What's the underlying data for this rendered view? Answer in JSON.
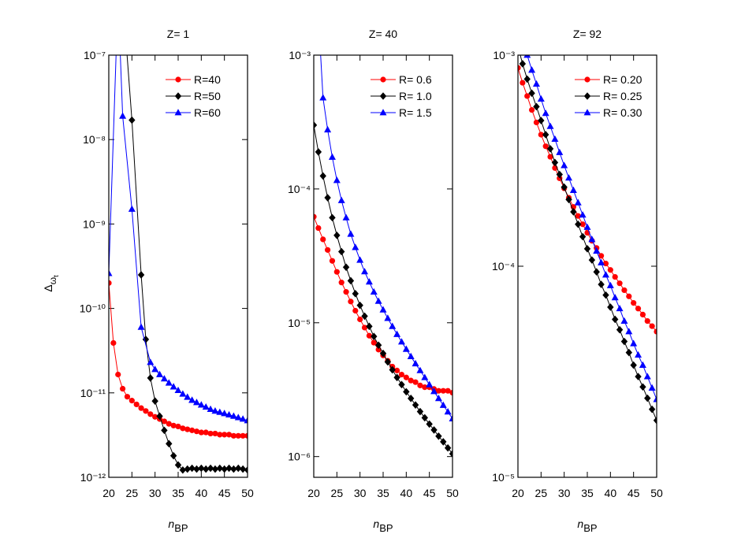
{
  "chart_data": [
    {
      "type": "line",
      "title": "Z= 1",
      "x_label": "n",
      "x_label_sub": "BP",
      "y_label": "Δ",
      "y_label_sub": "ω",
      "y_label_subsub": "t",
      "xlim": [
        20,
        50
      ],
      "xticks": [
        20,
        25,
        30,
        35,
        40,
        45,
        50
      ],
      "ylim": [
        1e-12,
        1e-07
      ],
      "log_y": true,
      "legend": "upper right",
      "yticks": [
        {
          "value": 1e-12,
          "label": "10⁻¹²"
        },
        {
          "value": 1e-11,
          "label": "10⁻¹¹"
        },
        {
          "value": 1e-10,
          "label": "10⁻¹⁰"
        },
        {
          "value": 1e-09,
          "label": "10⁻⁹"
        },
        {
          "value": 1e-08,
          "label": "10⁻⁸"
        },
        {
          "value": 1e-07,
          "label": "10⁻⁷"
        }
      ],
      "series": [
        {
          "name": "R=40",
          "color": "#ff0000",
          "marker": "circle",
          "x": [
            20,
            21,
            22,
            23,
            24,
            25,
            26,
            27,
            28,
            29,
            30,
            31,
            32,
            33,
            34,
            35,
            36,
            37,
            38,
            39,
            40,
            41,
            42,
            43,
            44,
            45,
            46,
            47,
            48,
            49,
            50
          ],
          "values": [
            2e-10,
            3.9e-11,
            1.65e-11,
            1.12e-11,
            9e-12,
            8.1e-12,
            7.3e-12,
            6.6e-12,
            6.1e-12,
            5.6e-12,
            5.2e-12,
            4.9e-12,
            4.6e-12,
            4.3e-12,
            4.1e-12,
            4e-12,
            3.8e-12,
            3.7e-12,
            3.6e-12,
            3.5e-12,
            3.4e-12,
            3.4e-12,
            3.3e-12,
            3.3e-12,
            3.2e-12,
            3.2e-12,
            3.2e-12,
            3.1e-12,
            3.1e-12,
            3.1e-12,
            3.1e-12
          ]
        },
        {
          "name": "R=50",
          "color": "#000000",
          "marker": "diamond",
          "x": [
            23,
            25,
            27,
            28,
            29,
            30,
            31,
            32,
            33,
            34,
            35,
            36,
            37,
            38,
            39,
            40,
            41,
            42,
            43,
            44,
            45,
            46,
            47,
            48,
            49,
            50
          ],
          "values": [
            5e-07,
            1.7e-08,
            2.5e-10,
            4.3e-11,
            1.5e-11,
            8e-12,
            5.3e-12,
            3.6e-12,
            2.5e-12,
            1.8e-12,
            1.4e-12,
            1.22e-12,
            1.25e-12,
            1.28e-12,
            1.25e-12,
            1.28e-12,
            1.25e-12,
            1.28e-12,
            1.25e-12,
            1.28e-12,
            1.25e-12,
            1.28e-12,
            1.25e-12,
            1.28e-12,
            1.25e-12,
            1.22e-12
          ]
        },
        {
          "name": "R=60",
          "color": "#0000ff",
          "marker": "triangle",
          "x": [
            20,
            22,
            23,
            25,
            27,
            29,
            30,
            31,
            32,
            33,
            34,
            35,
            36,
            37,
            38,
            39,
            40,
            41,
            42,
            43,
            44,
            45,
            46,
            47,
            48,
            49,
            50
          ],
          "values": [
            2.6e-10,
            5e-07,
            1.9e-08,
            1.5e-09,
            6e-11,
            2.3e-11,
            1.9e-11,
            1.65e-11,
            1.47e-11,
            1.31e-11,
            1.18e-11,
            1.07e-11,
            9.7e-12,
            8.9e-12,
            8.2e-12,
            7.7e-12,
            7.2e-12,
            6.8e-12,
            6.4e-12,
            6.1e-12,
            5.9e-12,
            5.7e-12,
            5.5e-12,
            5.3e-12,
            5.1e-12,
            4.9e-12,
            4.7e-12
          ]
        }
      ]
    },
    {
      "type": "line",
      "title": "Z= 40",
      "x_label": "n",
      "x_label_sub": "BP",
      "xlim": [
        20,
        50
      ],
      "xticks": [
        20,
        25,
        30,
        35,
        40,
        45,
        50
      ],
      "ylim": [
        7e-07,
        0.001
      ],
      "log_y": true,
      "legend": "upper right",
      "yticks": [
        {
          "value": 1e-06,
          "label": "10⁻⁶"
        },
        {
          "value": 1e-05,
          "label": "10⁻⁵"
        },
        {
          "value": 0.0001,
          "label": "10⁻⁴"
        },
        {
          "value": 0.001,
          "label": "10⁻³"
        }
      ],
      "series": [
        {
          "name": "R= 0.6",
          "color": "#ff0000",
          "marker": "circle",
          "x": [
            20,
            21,
            22,
            23,
            24,
            25,
            26,
            27,
            28,
            29,
            30,
            31,
            32,
            33,
            34,
            35,
            36,
            37,
            38,
            39,
            40,
            41,
            42,
            43,
            44,
            45,
            46,
            47,
            48,
            49,
            50
          ],
          "values": [
            6.2e-05,
            5.1e-05,
            4.2e-05,
            3.5e-05,
            2.9e-05,
            2.4e-05,
            2e-05,
            1.7e-05,
            1.44e-05,
            1.23e-05,
            1.06e-05,
            9.2e-06,
            8e-06,
            7.1e-06,
            6.3e-06,
            5.7e-06,
            5.2e-06,
            4.7e-06,
            4.4e-06,
            4.1e-06,
            3.9e-06,
            3.7e-06,
            3.6e-06,
            3.4e-06,
            3.3e-06,
            3.3e-06,
            3.2e-06,
            3.1e-06,
            3.1e-06,
            3.1e-06,
            3e-06
          ]
        },
        {
          "name": "R= 1.0",
          "color": "#000000",
          "marker": "diamond",
          "x": [
            20,
            21,
            22,
            23,
            24,
            25,
            26,
            27,
            28,
            29,
            30,
            31,
            32,
            33,
            34,
            35,
            36,
            37,
            38,
            39,
            40,
            41,
            42,
            43,
            44,
            45,
            46,
            47,
            48,
            49,
            50
          ],
          "values": [
            0.0003,
            0.000189,
            0.000125,
            8.6e-05,
            6.1e-05,
            4.5e-05,
            3.4e-05,
            2.6e-05,
            2.06e-05,
            1.65e-05,
            1.35e-05,
            1.12e-05,
            9.4e-06,
            7.9e-06,
            6.8e-06,
            5.9e-06,
            5.1e-06,
            4.45e-06,
            3.9e-06,
            3.45e-06,
            3.05e-06,
            2.72e-06,
            2.43e-06,
            2.17e-06,
            1.95e-06,
            1.75e-06,
            1.58e-06,
            1.42e-06,
            1.29e-06,
            1.16e-06,
            1.05e-06
          ]
        },
        {
          "name": "R= 1.5",
          "color": "#0000ff",
          "marker": "triangle",
          "x": [
            21,
            22,
            23,
            24,
            25,
            26,
            27,
            28,
            29,
            30,
            31,
            32,
            33,
            34,
            35,
            36,
            37,
            38,
            39,
            40,
            41,
            42,
            43,
            44,
            45,
            46,
            47,
            48,
            49,
            50
          ],
          "values": [
            0.002,
            0.00048,
            0.000277,
            0.000173,
            0.000116,
            8.2e-05,
            6.1e-05,
            4.6e-05,
            3.66e-05,
            2.94e-05,
            2.41e-05,
            2.02e-05,
            1.7e-05,
            1.45e-05,
            1.25e-05,
            1.08e-05,
            9.4e-06,
            8.2e-06,
            7.2e-06,
            6.35e-06,
            5.6e-06,
            4.95e-06,
            4.4e-06,
            3.9e-06,
            3.45e-06,
            3.07e-06,
            2.72e-06,
            2.42e-06,
            2.16e-06,
            1.92e-06
          ]
        }
      ]
    },
    {
      "type": "line",
      "title": "Z= 92",
      "x_label": "n",
      "x_label_sub": "BP",
      "xlim": [
        20,
        50
      ],
      "xticks": [
        20,
        25,
        30,
        35,
        40,
        45,
        50
      ],
      "ylim": [
        1e-05,
        0.001
      ],
      "log_y": true,
      "legend": "upper right",
      "yticks": [
        {
          "value": 1e-05,
          "label": "10⁻⁵"
        },
        {
          "value": 0.0001,
          "label": "10⁻⁴"
        },
        {
          "value": 0.001,
          "label": "10⁻³"
        }
      ],
      "series": [
        {
          "name": "R= 0.20",
          "color": "#ff0000",
          "marker": "circle",
          "x": [
            20,
            21,
            22,
            23,
            24,
            25,
            26,
            27,
            28,
            29,
            30,
            31,
            32,
            33,
            34,
            35,
            36,
            37,
            38,
            39,
            40,
            41,
            42,
            43,
            44,
            45,
            46,
            47,
            48,
            49,
            50
          ],
          "values": [
            0.00087,
            0.00074,
            0.00064,
            0.00055,
            0.00048,
            0.00042,
            0.00037,
            0.00033,
            0.000292,
            0.000261,
            0.000234,
            0.000211,
            0.000191,
            0.000173,
            0.000158,
            0.000144,
            0.000132,
            0.000122,
            0.000112,
            0.000103,
            9.6e-05,
            8.9e-05,
            8.3e-05,
            7.7e-05,
            7.2e-05,
            6.7e-05,
            6.3e-05,
            5.9e-05,
            5.5e-05,
            5.2e-05,
            4.9e-05
          ]
        },
        {
          "name": "R= 0.25",
          "color": "#000000",
          "marker": "diamond",
          "x": [
            20,
            21,
            22,
            23,
            24,
            25,
            26,
            27,
            28,
            29,
            30,
            31,
            32,
            33,
            34,
            35,
            36,
            37,
            38,
            39,
            40,
            41,
            42,
            43,
            44,
            45,
            46,
            47,
            48,
            49,
            50
          ],
          "values": [
            0.0011,
            0.00091,
            0.00077,
            0.00066,
            0.00057,
            0.00049,
            0.00042,
            0.00036,
            0.00031,
            0.000272,
            0.000237,
            0.000207,
            0.000181,
            0.000158,
            0.000138,
            0.000121,
            0.000107,
            9.4e-05,
            8.2e-05,
            7.3e-05,
            6.4e-05,
            5.6e-05,
            5e-05,
            4.4e-05,
            3.9e-05,
            3.4e-05,
            3e-05,
            2.68e-05,
            2.37e-05,
            2.1e-05,
            1.86e-05
          ]
        },
        {
          "name": "R= 0.30",
          "color": "#0000ff",
          "marker": "triangle",
          "x": [
            21,
            22,
            23,
            24,
            25,
            26,
            27,
            28,
            29,
            30,
            31,
            32,
            33,
            34,
            35,
            36,
            37,
            38,
            39,
            40,
            41,
            42,
            43,
            44,
            45,
            46,
            47,
            48,
            49,
            50
          ],
          "values": [
            0.0012,
            0.001,
            0.00085,
            0.00073,
            0.00062,
            0.00053,
            0.00046,
            0.0004,
            0.000346,
            0.0003,
            0.000262,
            0.000229,
            0.0002,
            0.000175,
            0.000153,
            0.000134,
            0.000118,
            0.000104,
            9.1e-05,
            8.1e-05,
            7.1e-05,
            6.3e-05,
            5.5e-05,
            4.9e-05,
            4.3e-05,
            3.8e-05,
            3.4e-05,
            3e-05,
            2.65e-05,
            2.34e-05
          ]
        }
      ]
    }
  ]
}
